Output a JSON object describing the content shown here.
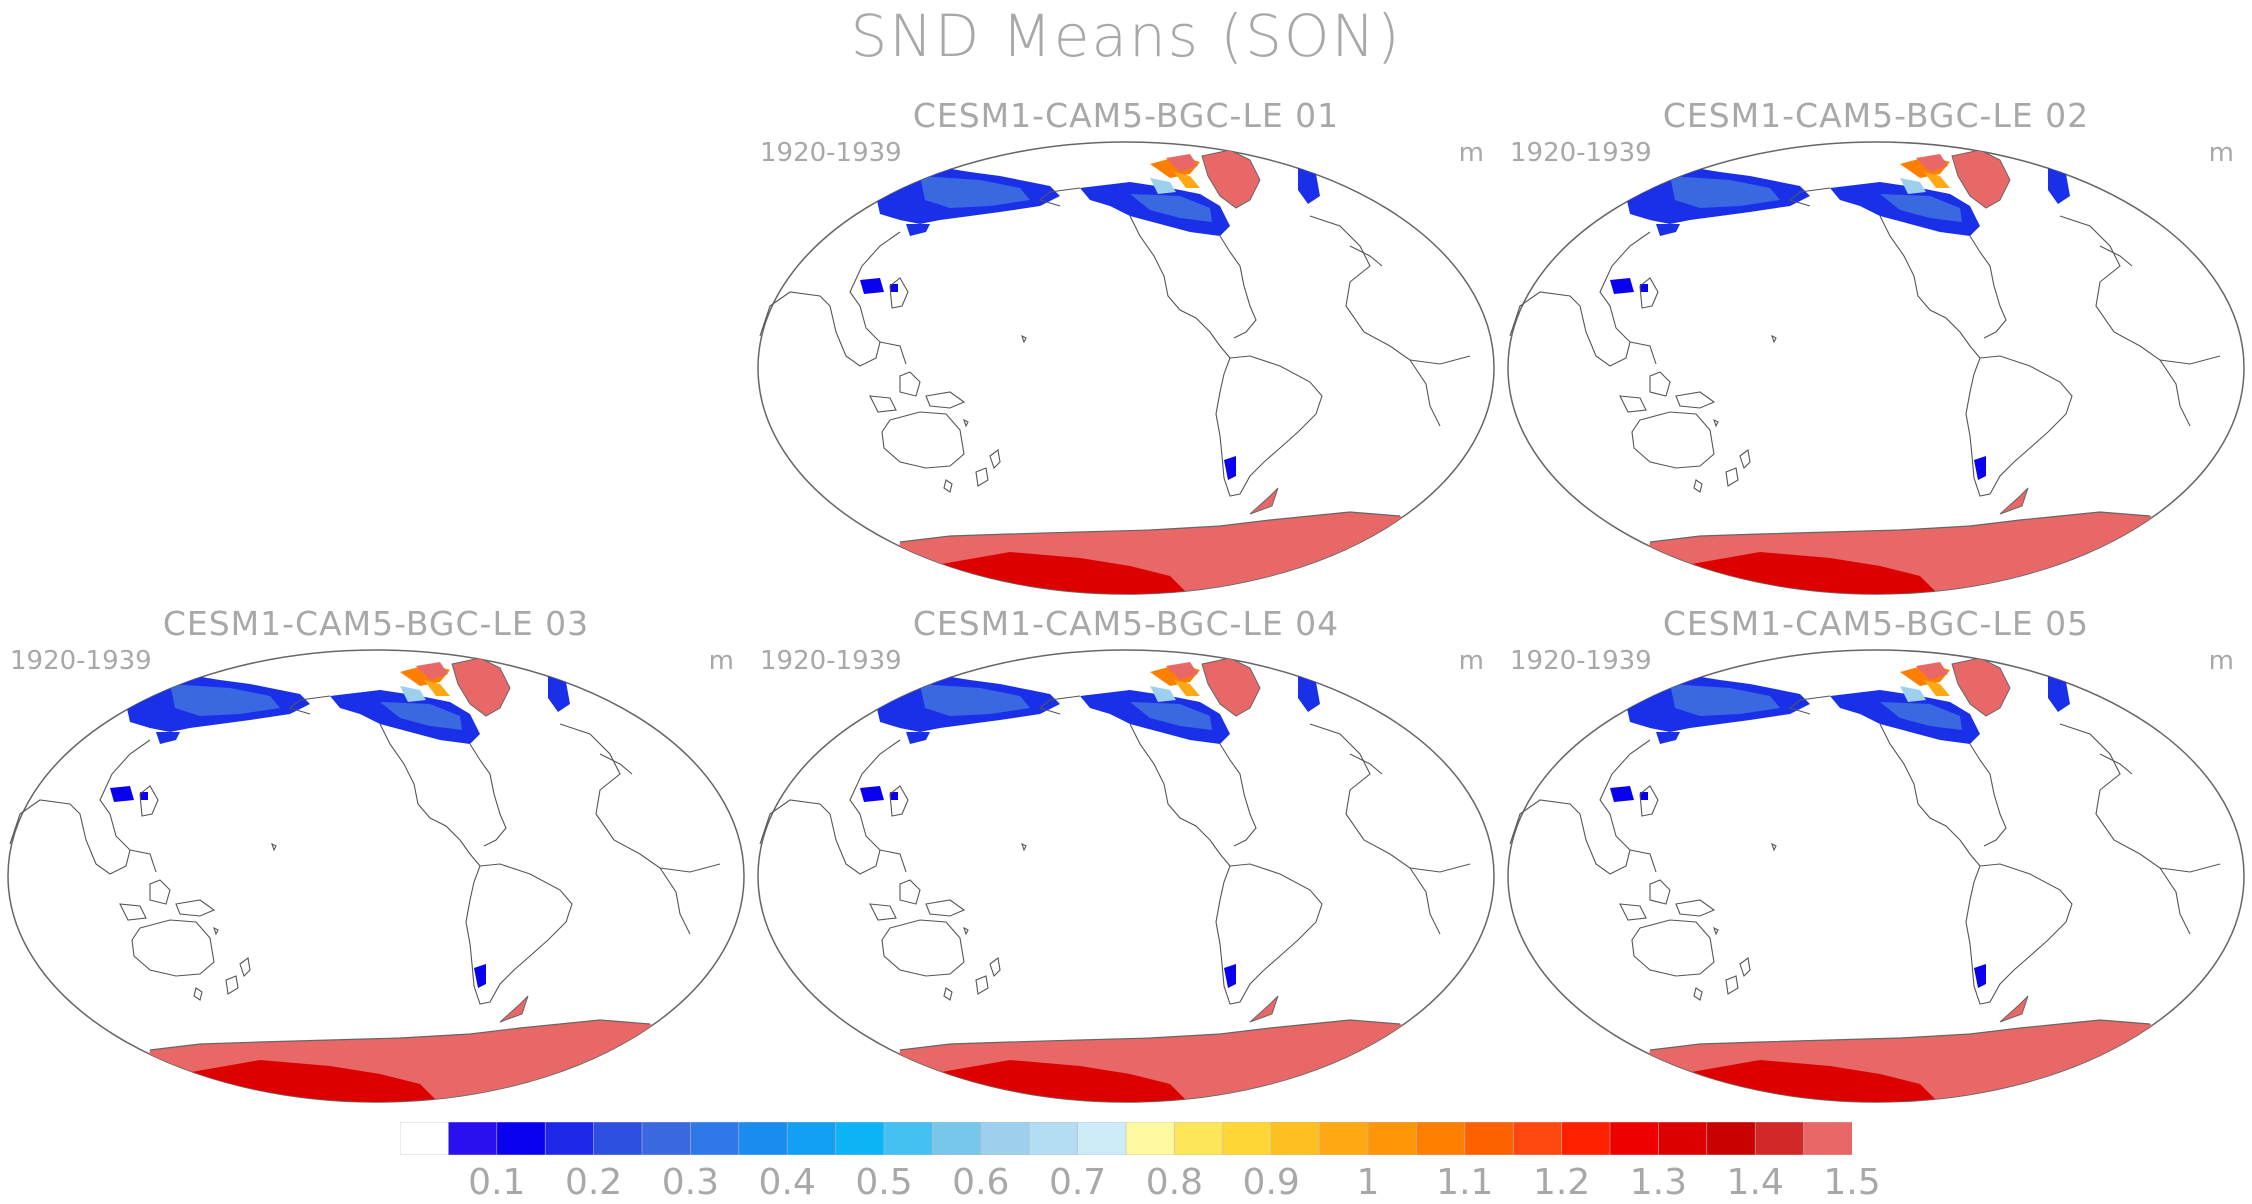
{
  "title": "SND Means (SON)",
  "panels": [
    {
      "title": "CESM1-CAM5-BGC-LE 01",
      "period": "1920-1939",
      "unit": "m"
    },
    {
      "title": "CESM1-CAM5-BGC-LE 02",
      "period": "1920-1939",
      "unit": "m"
    },
    {
      "title": "CESM1-CAM5-BGC-LE 03",
      "period": "1920-1939",
      "unit": "m"
    },
    {
      "title": "CESM1-CAM5-BGC-LE 04",
      "period": "1920-1939",
      "unit": "m"
    },
    {
      "title": "CESM1-CAM5-BGC-LE 05",
      "period": "1920-1939",
      "unit": "m"
    }
  ],
  "colorbar": {
    "colors": [
      "#ffffff",
      "#2a10f0",
      "#0a00f0",
      "#1e28e8",
      "#2e50e0",
      "#3a68e0",
      "#2e78ea",
      "#1a8cf0",
      "#12a0f4",
      "#0cb4f6",
      "#44c0f2",
      "#78c6ea",
      "#9cd0ee",
      "#b4dcf2",
      "#ccecf8",
      "#fef8a0",
      "#fee65a",
      "#fed636",
      "#fec020",
      "#fea814",
      "#fe9608",
      "#fe7e00",
      "#fe6200",
      "#fe4810",
      "#fe2000",
      "#ee0000",
      "#dc0000",
      "#c80000",
      "#d22828",
      "#e86868"
    ],
    "labels": [
      "0.1",
      "0.2",
      "0.3",
      "0.4",
      "0.5",
      "0.6",
      "0.7",
      "0.8",
      "0.9",
      "1",
      "1.1",
      "1.2",
      "1.3",
      "1.4",
      "1.5"
    ]
  }
}
